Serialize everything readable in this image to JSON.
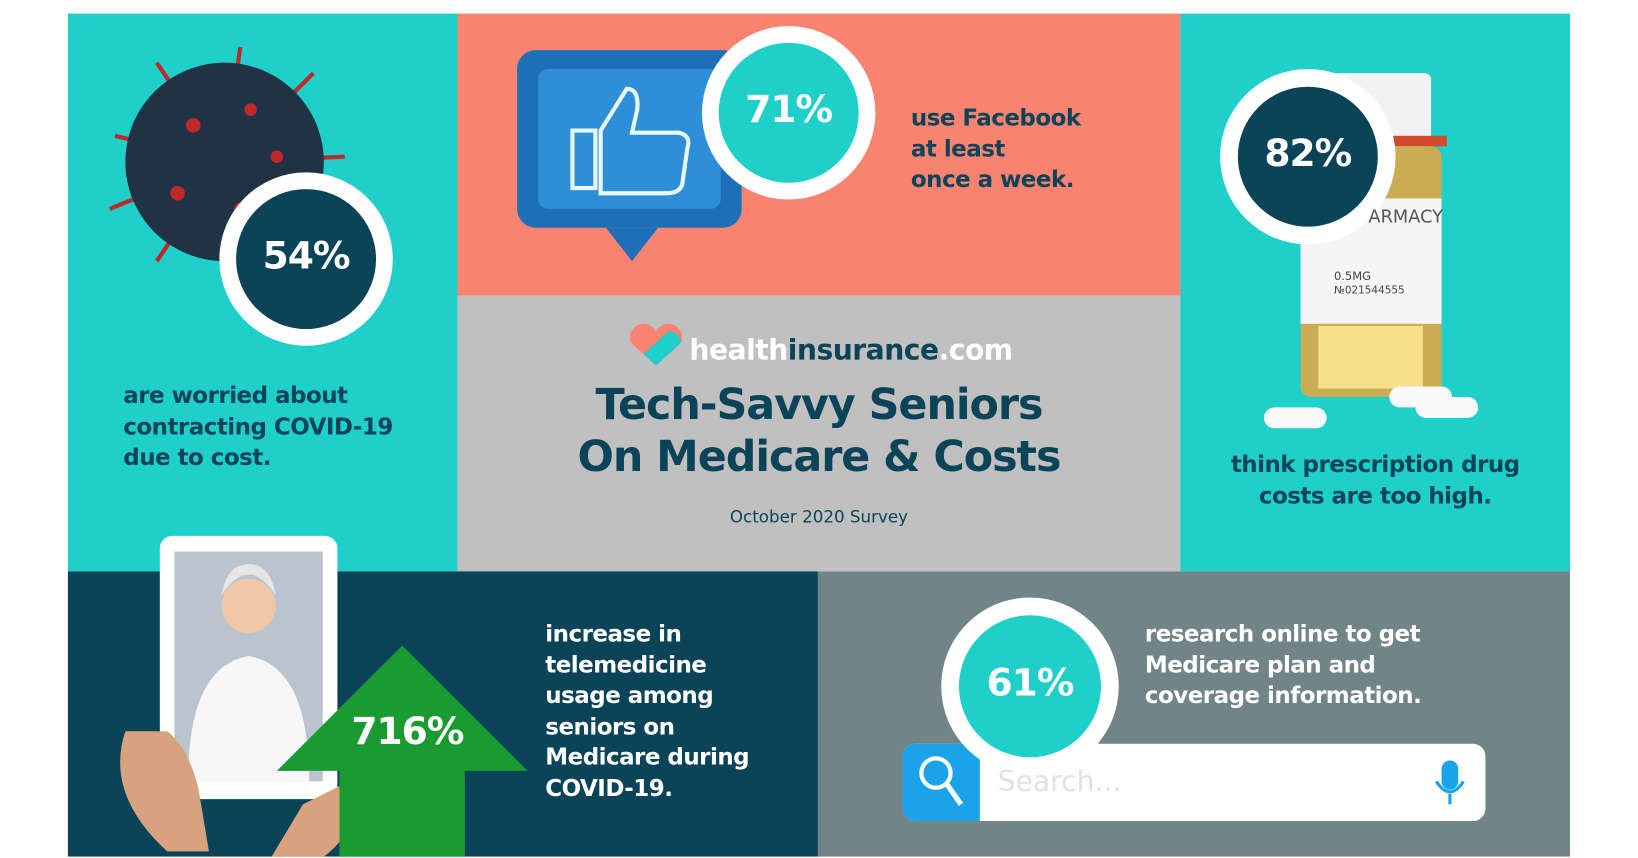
{
  "logo": {
    "part1": "health",
    "part2": "insurance",
    "part3": ".com"
  },
  "title": [
    "Tech-Savvy Seniors",
    "On Medicare & Costs"
  ],
  "subtitle": "October 2020 Survey",
  "stats": [
    {
      "value": "54%",
      "lines": [
        "are worried about",
        "contracting COVID-19",
        "due to cost."
      ]
    },
    {
      "value": "71%",
      "lines": [
        "use Facebook",
        "at least",
        "once a week."
      ]
    },
    {
      "value": "82%",
      "lines": [
        "think prescription drug",
        "costs are too high."
      ]
    },
    {
      "value": "716%",
      "lines": [
        "increase in",
        "telemedicine",
        "usage among",
        "seniors on",
        "Medicare during",
        "COVID-19."
      ]
    },
    {
      "value": "61%",
      "lines": [
        "research online to get",
        "Medicare plan and",
        "coverage information."
      ]
    }
  ],
  "search_placeholder": "Search...",
  "pill_label": {
    "brand": "ARMACY",
    "dose": "0.5MG",
    "code": "№021544555"
  }
}
